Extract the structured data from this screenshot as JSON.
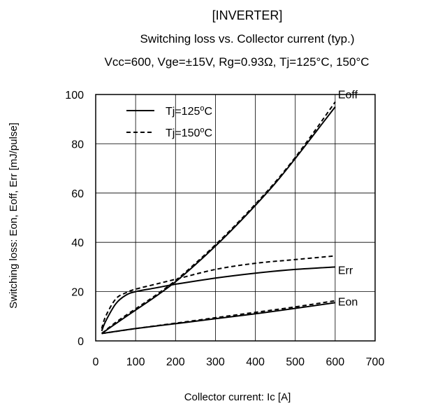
{
  "chart_data": {
    "type": "line",
    "title_lines": [
      "[INVERTER]",
      "Switching loss vs. Collector current (typ.)",
      "Vcc=600, Vge=±15V, Rg=0.93Ω, Tj=125°C, 150°C"
    ],
    "xlabel": "Collector current: Ic [A]",
    "ylabel": "Switching loss: Eon, Eoff, Err [mJ/pulse]",
    "xlim": [
      0,
      700
    ],
    "ylim": [
      0,
      100
    ],
    "xticks": [
      0,
      100,
      200,
      300,
      400,
      500,
      600,
      700
    ],
    "yticks": [
      0,
      20,
      40,
      60,
      80,
      100
    ],
    "grid": true,
    "legend_position": "top-left",
    "legend": [
      {
        "label": "Tj=125°C",
        "style": "solid"
      },
      {
        "label": "Tj=150°C",
        "style": "dashed"
      }
    ],
    "curve_labels": [
      {
        "text": "Eoff",
        "series": "Eoff"
      },
      {
        "text": "Err",
        "series": "Err"
      },
      {
        "text": "Eon",
        "series": "Eon"
      }
    ],
    "series": [
      {
        "curve": "Eoff",
        "style": "solid",
        "x": [
          15,
          50,
          100,
          150,
          200,
          250,
          300,
          350,
          400,
          450,
          500,
          550,
          600
        ],
        "y": [
          3,
          7,
          12.5,
          18,
          24,
          31,
          38.5,
          46.5,
          55,
          64,
          74,
          84.5,
          95
        ]
      },
      {
        "curve": "Eoff",
        "style": "dashed",
        "x": [
          15,
          50,
          100,
          150,
          200,
          250,
          300,
          350,
          400,
          450,
          500,
          550,
          600
        ],
        "y": [
          3,
          7.5,
          13,
          18.5,
          24.5,
          31.5,
          39,
          47,
          55.5,
          64.5,
          74.5,
          85.5,
          97
        ]
      },
      {
        "curve": "Err",
        "style": "solid",
        "x": [
          15,
          25,
          50,
          75,
          100,
          150,
          200,
          300,
          400,
          500,
          600
        ],
        "y": [
          4,
          8,
          15,
          18.5,
          20,
          21.5,
          23,
          25.5,
          27.5,
          29,
          30
        ]
      },
      {
        "curve": "Err",
        "style": "dashed",
        "x": [
          15,
          25,
          50,
          75,
          100,
          150,
          200,
          300,
          400,
          500,
          600
        ],
        "y": [
          5,
          10,
          17,
          19.5,
          21,
          23,
          25,
          29,
          31.5,
          33,
          34.5
        ]
      },
      {
        "curve": "Eon",
        "style": "solid",
        "x": [
          15,
          100,
          200,
          300,
          400,
          500,
          600
        ],
        "y": [
          3,
          5,
          7,
          9,
          11,
          13.2,
          15.5
        ]
      },
      {
        "curve": "Eon",
        "style": "dashed",
        "x": [
          15,
          100,
          200,
          300,
          400,
          500,
          600
        ],
        "y": [
          3,
          5,
          7.2,
          9.4,
          11.6,
          13.8,
          16.3
        ]
      }
    ]
  }
}
